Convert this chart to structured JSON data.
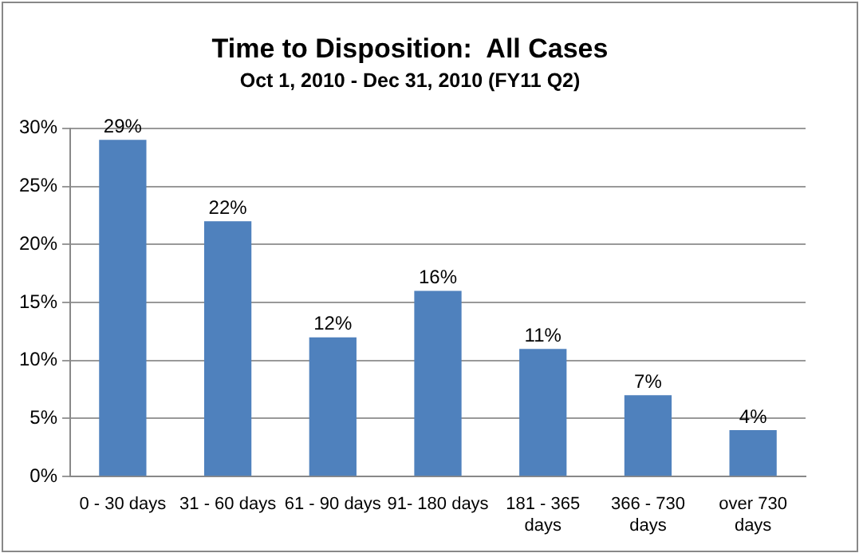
{
  "chart_data": {
    "type": "bar",
    "title": "Time to Disposition:  All Cases",
    "subtitle": "Oct 1, 2010 - Dec 31, 2010 (FY11 Q2)",
    "categories": [
      "0 - 30 days",
      "31 - 60 days",
      "61 - 90 days",
      "91- 180 days",
      "181 - 365 days",
      "366 - 730 days",
      "over 730 days"
    ],
    "values": [
      29,
      22,
      12,
      16,
      11,
      7,
      4
    ],
    "value_labels": [
      "29%",
      "22%",
      "12%",
      "16%",
      "11%",
      "7%",
      "4%"
    ],
    "color": "#4f81bd",
    "ylim": [
      0,
      30
    ],
    "yticks": [
      {
        "value": 0,
        "label": "0%"
      },
      {
        "value": 5,
        "label": "5%"
      },
      {
        "value": 10,
        "label": "10%"
      },
      {
        "value": 15,
        "label": "15%"
      },
      {
        "value": 20,
        "label": "20%"
      },
      {
        "value": 25,
        "label": "25%"
      },
      {
        "value": 30,
        "label": "30%"
      }
    ],
    "grid": "y",
    "legend": false
  }
}
